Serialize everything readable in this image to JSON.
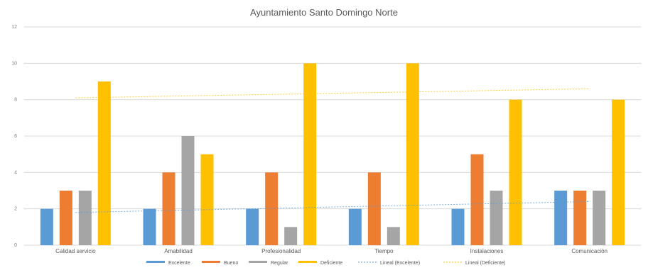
{
  "chart_data": {
    "type": "bar",
    "title": "Ayuntamiento Santo Domingo Norte",
    "xlabel": "",
    "ylabel": "",
    "ylim": [
      0,
      12
    ],
    "yticks": [
      0,
      2,
      4,
      6,
      8,
      10,
      12
    ],
    "grid": true,
    "legend": "bottom",
    "categories": [
      "Calidad servicio",
      "Amabilidad",
      "Profesionalidad",
      "Tiempo",
      "Instalaciones",
      "Comunicación"
    ],
    "series": [
      {
        "name": "Excelente",
        "color": "#5b9bd5",
        "values": [
          2,
          2,
          2,
          2,
          2,
          3
        ]
      },
      {
        "name": "Bueno",
        "color": "#ed7d31",
        "values": [
          3,
          4,
          4,
          4,
          5,
          3
        ]
      },
      {
        "name": "Regular",
        "color": "#a5a5a5",
        "values": [
          3,
          6,
          1,
          1,
          3,
          3
        ]
      },
      {
        "name": "Deficiente",
        "color": "#ffc000",
        "values": [
          9,
          5,
          10,
          10,
          8,
          8
        ]
      }
    ],
    "trendlines": [
      {
        "name": "Lineal (Excelente)",
        "color": "#5b9bd5",
        "values": [
          1.8,
          2.4
        ]
      },
      {
        "name": "Lineal (Deficiente)",
        "color": "#ffc000",
        "values": [
          8.1,
          8.6
        ]
      }
    ]
  }
}
